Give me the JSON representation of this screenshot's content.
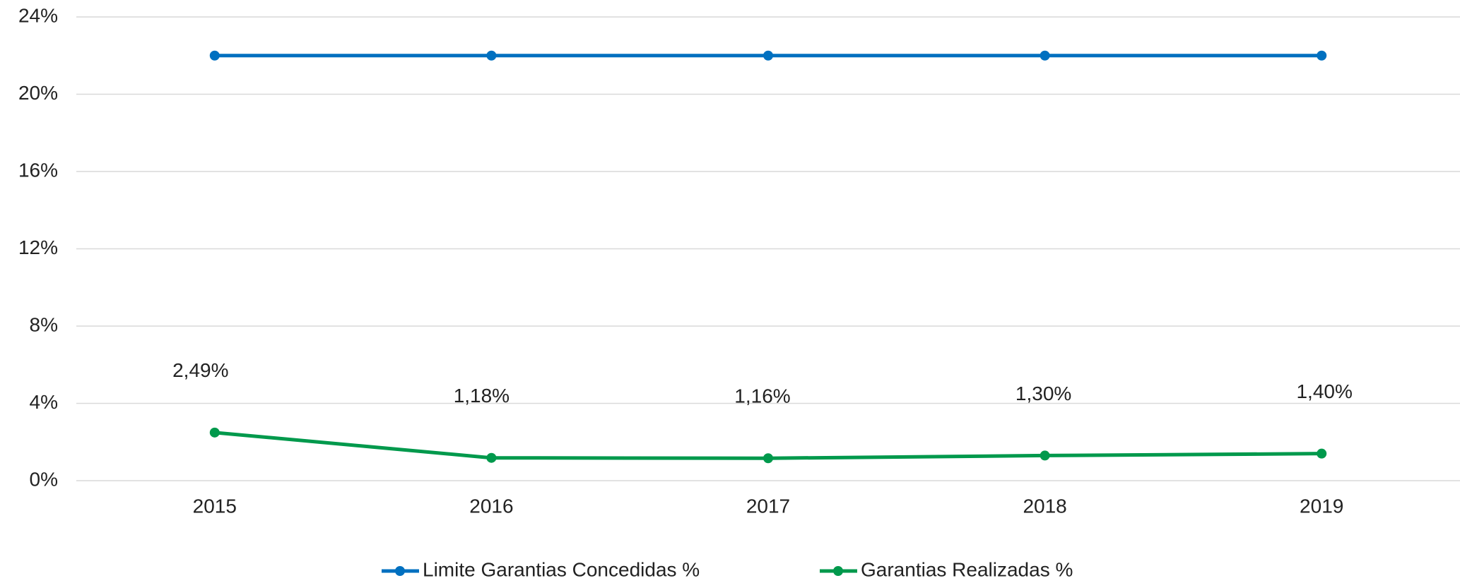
{
  "chart_data": {
    "type": "line",
    "categories": [
      "2015",
      "2016",
      "2017",
      "2018",
      "2019"
    ],
    "series": [
      {
        "name": "Limite Garantias Concedidas %",
        "color": "#0070c0",
        "values": [
          22,
          22,
          22,
          22,
          22
        ]
      },
      {
        "name": "Garantias Realizadas %",
        "color": "#00994c",
        "values": [
          2.49,
          1.18,
          1.16,
          1.3,
          1.4
        ],
        "value_labels": [
          "2,49%",
          "1,18%",
          "1,16%",
          "1,30%",
          "1,40%"
        ]
      }
    ],
    "ylim": [
      0,
      24
    ],
    "yticks": [
      {
        "value": 0,
        "label": "0%"
      },
      {
        "value": 4,
        "label": "4%"
      },
      {
        "value": 8,
        "label": "8%"
      },
      {
        "value": 12,
        "label": "12%"
      },
      {
        "value": 16,
        "label": "16%"
      },
      {
        "value": 20,
        "label": "20%"
      },
      {
        "value": 24,
        "label": "24%"
      }
    ],
    "grid": true,
    "legend": "bottom"
  }
}
